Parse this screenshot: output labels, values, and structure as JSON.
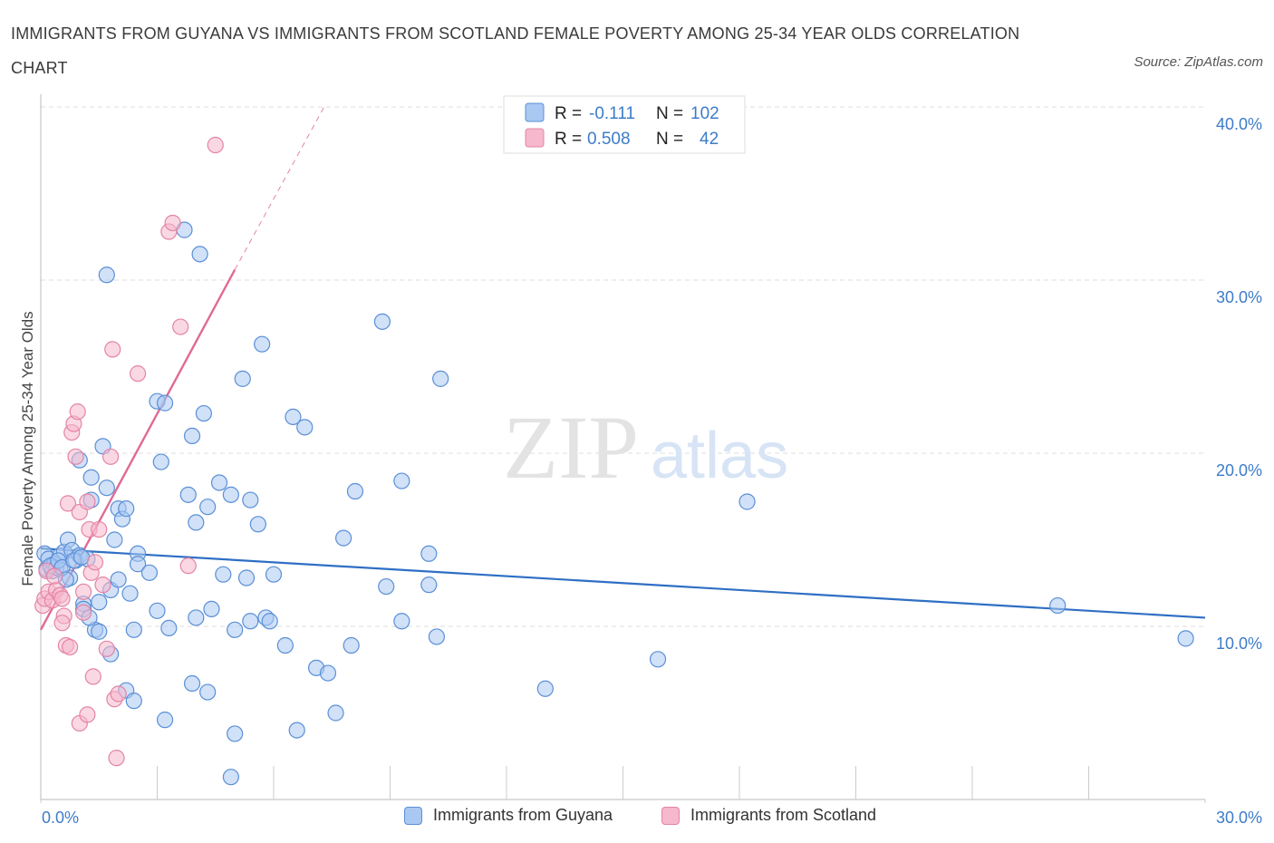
{
  "header": {
    "title": "IMMIGRANTS FROM GUYANA VS IMMIGRANTS FROM SCOTLAND FEMALE POVERTY AMONG 25-34 YEAR OLDS CORRELATION CHART",
    "source": "Source: ZipAtlas.com"
  },
  "watermark": {
    "zip": "ZIP",
    "atlas": "atlas"
  },
  "legend": {
    "r_label": "R =",
    "n_label": "N =",
    "guyana": {
      "r": "-0.111",
      "n": "102"
    },
    "scotland": {
      "r": "0.508",
      "n": "42"
    }
  },
  "colors": {
    "blue_fill": "#a9c8f2",
    "blue_stroke": "#5b8fd6",
    "blue_line": "#2f6fc4",
    "pink_fill": "#f6b8cc",
    "pink_stroke": "#e484a6",
    "pink_line": "#e06a93",
    "axis_text": "#3d7cc9",
    "grid": "#dddddd"
  },
  "chart_data": {
    "type": "scatter",
    "title": "IMMIGRANTS FROM GUYANA VS IMMIGRANTS FROM SCOTLAND FEMALE POVERTY AMONG 25-34 YEAR OLDS CORRELATION CHART",
    "xlabel": "",
    "ylabel": "Female Poverty Among 25-34 Year Olds",
    "xlim": [
      0,
      30
    ],
    "ylim": [
      0,
      40
    ],
    "x_tick_labels": [
      "0.0%",
      "30.0%"
    ],
    "y_ticks": [
      10,
      20,
      30,
      40
    ],
    "y_tick_labels": [
      "10.0%",
      "20.0%",
      "30.0%",
      "40.0%"
    ],
    "grid": true,
    "series": [
      {
        "name": "Immigrants from Guyana",
        "color": "#5b8fd6",
        "trend": {
          "x": [
            0,
            30
          ],
          "y": [
            14.5,
            10.5
          ]
        },
        "points": [
          [
            0.1,
            14.2
          ],
          [
            0.15,
            13.3
          ],
          [
            0.2,
            13.9
          ],
          [
            0.3,
            13.2
          ],
          [
            0.35,
            13.6
          ],
          [
            0.4,
            13.4
          ],
          [
            0.5,
            13.3
          ],
          [
            0.5,
            14.1
          ],
          [
            0.6,
            14.3
          ],
          [
            0.7,
            15.0
          ],
          [
            0.75,
            12.8
          ],
          [
            0.8,
            14.4
          ],
          [
            0.9,
            13.8
          ],
          [
            1.0,
            14.1
          ],
          [
            1.0,
            19.6
          ],
          [
            1.1,
            11.3
          ],
          [
            1.2,
            13.9
          ],
          [
            1.3,
            18.6
          ],
          [
            1.3,
            17.3
          ],
          [
            1.1,
            11.0
          ],
          [
            1.4,
            9.8
          ],
          [
            1.5,
            11.4
          ],
          [
            1.5,
            9.7
          ],
          [
            1.6,
            20.4
          ],
          [
            1.7,
            18.0
          ],
          [
            1.8,
            12.1
          ],
          [
            1.8,
            8.4
          ],
          [
            1.9,
            15.0
          ],
          [
            2.0,
            16.8
          ],
          [
            2.0,
            12.7
          ],
          [
            2.1,
            16.2
          ],
          [
            2.2,
            16.8
          ],
          [
            2.3,
            11.9
          ],
          [
            2.4,
            9.8
          ],
          [
            2.5,
            14.2
          ],
          [
            2.5,
            13.6
          ],
          [
            2.2,
            6.3
          ],
          [
            2.4,
            5.7
          ],
          [
            1.7,
            30.3
          ],
          [
            3.0,
            23.0
          ],
          [
            2.8,
            13.1
          ],
          [
            3.0,
            10.9
          ],
          [
            3.1,
            19.5
          ],
          [
            3.2,
            22.9
          ],
          [
            3.3,
            9.9
          ],
          [
            3.2,
            4.6
          ],
          [
            3.7,
            32.9
          ],
          [
            3.8,
            17.6
          ],
          [
            3.9,
            21.0
          ],
          [
            4.0,
            16.0
          ],
          [
            3.9,
            6.7
          ],
          [
            4.0,
            10.5
          ],
          [
            4.1,
            31.5
          ],
          [
            4.2,
            22.3
          ],
          [
            4.3,
            6.2
          ],
          [
            4.3,
            16.9
          ],
          [
            4.4,
            11.0
          ],
          [
            4.6,
            18.3
          ],
          [
            4.7,
            13.0
          ],
          [
            4.9,
            17.6
          ],
          [
            5.0,
            9.8
          ],
          [
            5.2,
            24.3
          ],
          [
            5.3,
            12.8
          ],
          [
            5.4,
            10.3
          ],
          [
            5.4,
            17.3
          ],
          [
            5.6,
            15.9
          ],
          [
            5.7,
            26.3
          ],
          [
            5.8,
            10.5
          ],
          [
            5.9,
            10.3
          ],
          [
            6.0,
            13.0
          ],
          [
            5.0,
            3.8
          ],
          [
            6.3,
            8.9
          ],
          [
            6.5,
            22.1
          ],
          [
            6.6,
            4.0
          ],
          [
            6.8,
            21.5
          ],
          [
            7.1,
            7.6
          ],
          [
            7.4,
            7.3
          ],
          [
            7.8,
            15.1
          ],
          [
            7.6,
            5.0
          ],
          [
            8.1,
            17.8
          ],
          [
            8.0,
            8.9
          ],
          [
            8.8,
            27.6
          ],
          [
            8.9,
            12.3
          ],
          [
            9.3,
            18.4
          ],
          [
            9.3,
            10.3
          ],
          [
            10.0,
            14.2
          ],
          [
            10.3,
            24.3
          ],
          [
            10.0,
            12.4
          ],
          [
            10.2,
            9.4
          ],
          [
            4.9,
            1.3
          ],
          [
            13.0,
            6.4
          ],
          [
            15.9,
            8.1
          ],
          [
            18.2,
            17.2
          ],
          [
            26.2,
            11.2
          ],
          [
            29.5,
            9.3
          ],
          [
            0.25,
            13.5
          ],
          [
            0.45,
            13.8
          ],
          [
            0.55,
            13.4
          ],
          [
            0.65,
            12.7
          ],
          [
            0.85,
            13.8
          ],
          [
            1.05,
            14.0
          ],
          [
            1.25,
            10.5
          ]
        ]
      },
      {
        "name": "Immigrants from Scotland",
        "color": "#e484a6",
        "trend": {
          "x": [
            0,
            5.0
          ],
          "y": [
            9.8,
            30.6
          ]
        },
        "trend_extension": {
          "x": [
            5.0,
            7.3
          ],
          "y": [
            30.6,
            40.0
          ]
        },
        "points": [
          [
            0.05,
            11.2
          ],
          [
            0.1,
            11.6
          ],
          [
            0.15,
            13.2
          ],
          [
            0.2,
            12.0
          ],
          [
            0.3,
            11.5
          ],
          [
            0.4,
            12.1
          ],
          [
            0.5,
            11.8
          ],
          [
            0.55,
            11.6
          ],
          [
            0.6,
            10.6
          ],
          [
            0.55,
            10.2
          ],
          [
            0.7,
            17.1
          ],
          [
            0.65,
            8.9
          ],
          [
            0.75,
            8.8
          ],
          [
            0.8,
            21.2
          ],
          [
            0.85,
            21.7
          ],
          [
            0.9,
            19.8
          ],
          [
            0.95,
            22.4
          ],
          [
            1.0,
            16.6
          ],
          [
            1.1,
            12.0
          ],
          [
            1.1,
            10.8
          ],
          [
            1.2,
            17.2
          ],
          [
            1.25,
            15.6
          ],
          [
            1.3,
            13.1
          ],
          [
            1.35,
            7.1
          ],
          [
            1.4,
            13.7
          ],
          [
            1.5,
            15.6
          ],
          [
            1.6,
            12.4
          ],
          [
            1.7,
            8.7
          ],
          [
            1.8,
            19.8
          ],
          [
            1.85,
            26.0
          ],
          [
            1.9,
            5.8
          ],
          [
            1.95,
            2.4
          ],
          [
            2.0,
            6.1
          ],
          [
            2.5,
            24.6
          ],
          [
            3.3,
            32.8
          ],
          [
            3.4,
            33.3
          ],
          [
            3.6,
            27.3
          ],
          [
            3.8,
            13.5
          ],
          [
            4.5,
            37.8
          ],
          [
            1.0,
            4.4
          ],
          [
            1.2,
            4.9
          ],
          [
            0.35,
            12.9
          ]
        ]
      }
    ]
  },
  "bottom_legend": {
    "guyana_label": "Immigrants from Guyana",
    "scotland_label": "Immigrants from Scotland"
  }
}
